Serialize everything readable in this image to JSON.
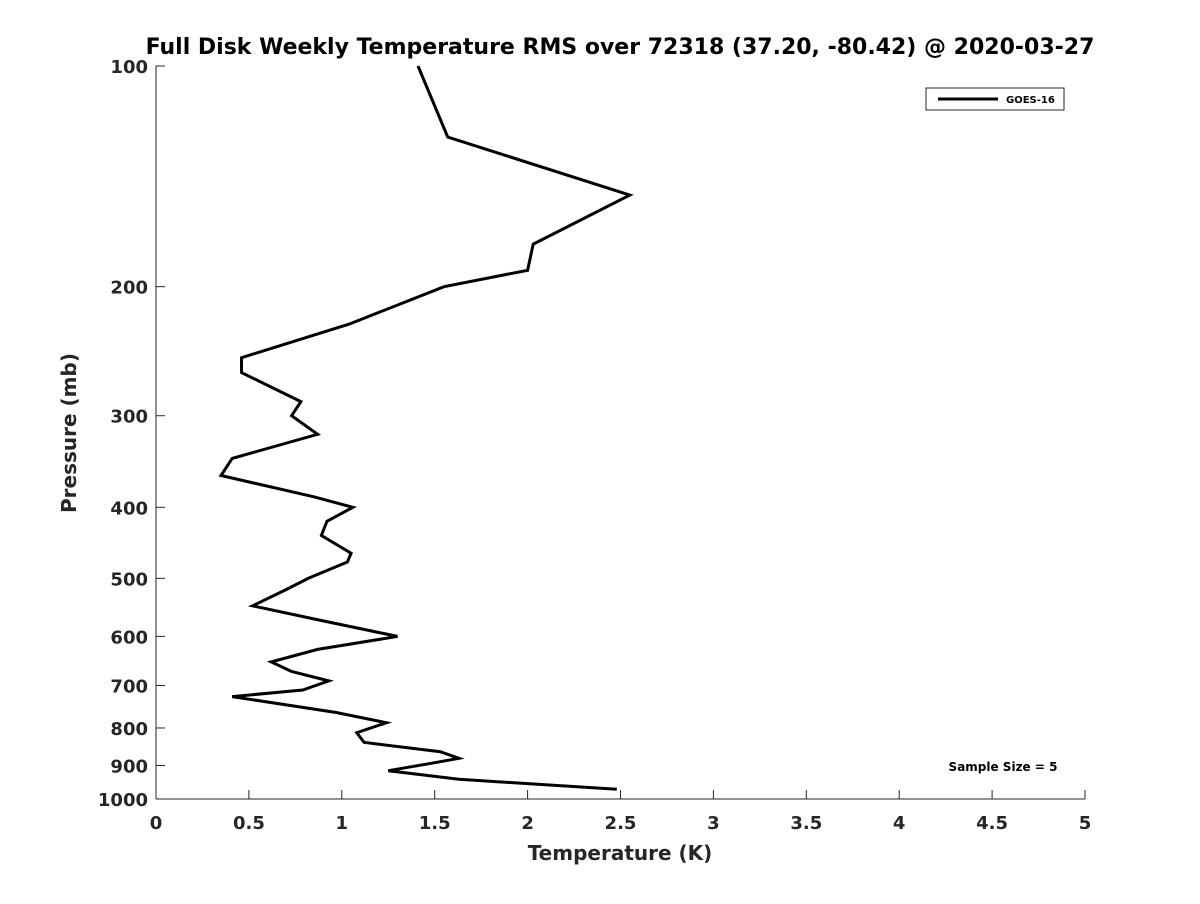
{
  "chart_data": {
    "type": "line",
    "title": "Full Disk Weekly Temperature RMS over 72318 (37.20, -80.42) @ 2020-03-27",
    "xlabel": "Temperature (K)",
    "ylabel": "Pressure (mb)",
    "xlim": [
      0,
      5
    ],
    "ylim": [
      100,
      1000
    ],
    "y_scale": "log",
    "y_reversed": true,
    "x_ticks": [
      "0",
      "0.5",
      "1",
      "1.5",
      "2",
      "2.5",
      "3",
      "3.5",
      "4",
      "4.5",
      "5"
    ],
    "y_ticks": [
      "100",
      "200",
      "300",
      "400",
      "500",
      "600",
      "700",
      "800",
      "900",
      "1000"
    ],
    "grid": false,
    "legend_position": "top-right",
    "series": [
      {
        "name": "GOES-16",
        "color": "#000000",
        "points": [
          [
            1.41,
            100
          ],
          [
            1.57,
            125
          ],
          [
            2.55,
            150
          ],
          [
            2.03,
            175
          ],
          [
            2.0,
            190
          ],
          [
            1.55,
            200
          ],
          [
            1.04,
            225
          ],
          [
            0.46,
            250
          ],
          [
            0.46,
            262
          ],
          [
            0.78,
            287
          ],
          [
            0.73,
            300
          ],
          [
            0.87,
            318
          ],
          [
            0.41,
            343
          ],
          [
            0.35,
            362
          ],
          [
            0.85,
            387
          ],
          [
            1.06,
            400
          ],
          [
            0.92,
            418
          ],
          [
            0.89,
            437
          ],
          [
            1.05,
            462
          ],
          [
            1.03,
            475
          ],
          [
            0.82,
            500
          ],
          [
            0.7,
            518
          ],
          [
            0.52,
            545
          ],
          [
            0.88,
            570
          ],
          [
            1.3,
            600
          ],
          [
            0.87,
            625
          ],
          [
            0.62,
            650
          ],
          [
            0.73,
            670
          ],
          [
            0.93,
            690
          ],
          [
            0.79,
            710
          ],
          [
            0.41,
            725
          ],
          [
            0.97,
            762
          ],
          [
            1.24,
            787
          ],
          [
            1.08,
            812
          ],
          [
            1.12,
            837
          ],
          [
            1.53,
            862
          ],
          [
            1.63,
            880
          ],
          [
            1.47,
            895
          ],
          [
            1.25,
            915
          ],
          [
            1.63,
            940
          ],
          [
            2.48,
            970
          ]
        ]
      }
    ],
    "annotations": [
      "Sample Size = 5"
    ]
  }
}
